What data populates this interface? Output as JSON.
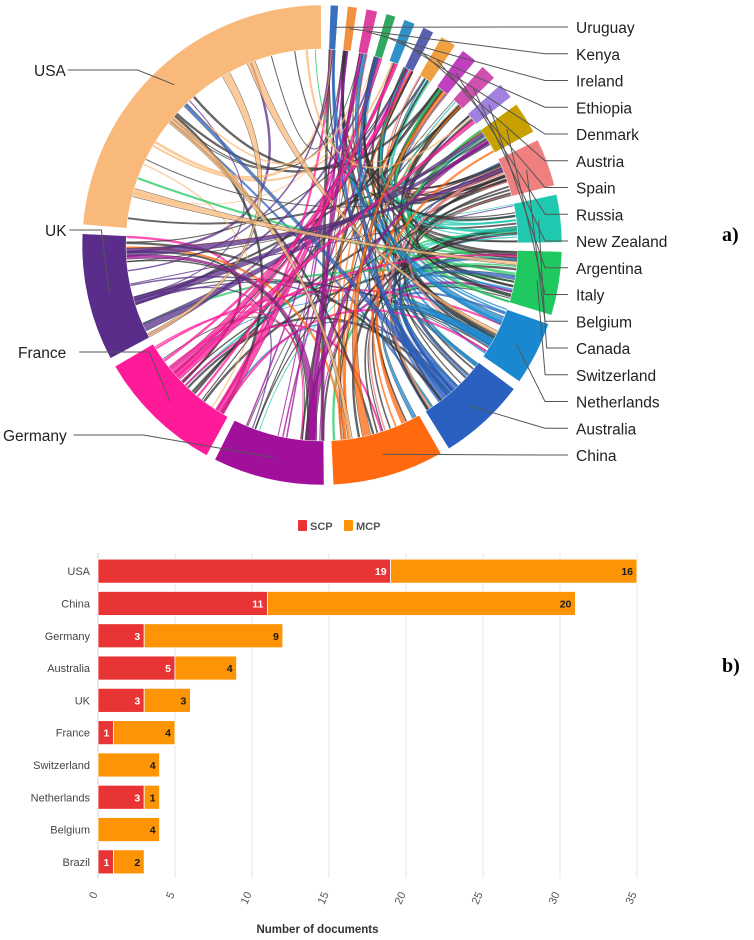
{
  "panel_tags": {
    "a": "a)",
    "b": "b)"
  },
  "chart_data": [
    {
      "type": "chord",
      "countries": [
        {
          "name": "Uruguay",
          "color": "#3b6fc0",
          "weight": 0.5
        },
        {
          "name": "Kenya",
          "color": "#f09040",
          "weight": 0.6
        },
        {
          "name": "Ireland",
          "color": "#e040a0",
          "weight": 0.7
        },
        {
          "name": "Ethiopia",
          "color": "#30a860",
          "weight": 0.6
        },
        {
          "name": "Denmark",
          "color": "#3090c8",
          "weight": 0.7
        },
        {
          "name": "Austria",
          "color": "#5a60b0",
          "weight": 0.7
        },
        {
          "name": "Spain",
          "color": "#f0a040",
          "weight": 1
        },
        {
          "name": "Russia",
          "color": "#c040c0",
          "weight": 1
        },
        {
          "name": "New Zealand",
          "color": "#d050b0",
          "weight": 1
        },
        {
          "name": "Argentina",
          "color": "#a080e0",
          "weight": 1
        },
        {
          "name": "Italy",
          "color": "#c8a000",
          "weight": 2
        },
        {
          "name": "Belgium",
          "color": "#f08080",
          "weight": 3
        },
        {
          "name": "Canada",
          "color": "#20c8b0",
          "weight": 3
        },
        {
          "name": "Switzerland",
          "color": "#20c860",
          "weight": 4
        },
        {
          "name": "Netherlands",
          "color": "#1a88d0",
          "weight": 4
        },
        {
          "name": "Australia",
          "color": "#2a60c0",
          "weight": 5.5
        },
        {
          "name": "China",
          "color": "#ff6a10",
          "weight": 7
        },
        {
          "name": "Germany",
          "color": "#a0109a",
          "weight": 7
        },
        {
          "name": "France",
          "color": "#ff1a9a",
          "weight": 8
        },
        {
          "name": "UK",
          "color": "#5a2d8a",
          "weight": 8
        },
        {
          "name": "USA",
          "color": "#f9b97a",
          "weight": 22
        }
      ]
    },
    {
      "type": "bar",
      "orientation": "horizontal",
      "stacked": true,
      "categories": [
        "USA",
        "China",
        "Germany",
        "Australia",
        "UK",
        "France",
        "Switzerland",
        "Netherlands",
        "Belgium",
        "Brazil"
      ],
      "series": [
        {
          "name": "SCP",
          "color": "#e83434",
          "values": [
            19,
            11,
            3,
            5,
            3,
            1,
            0,
            3,
            0,
            1
          ]
        },
        {
          "name": "MCP",
          "color": "#fd9405",
          "values": [
            16,
            20,
            9,
            4,
            3,
            4,
            4,
            1,
            4,
            2
          ]
        }
      ],
      "xlabel": "Number of documents",
      "xlim": [
        0,
        35
      ],
      "xticks": [
        0,
        5,
        10,
        15,
        20,
        25,
        30,
        35
      ],
      "legend": "top-center",
      "grid": "vertical"
    }
  ]
}
